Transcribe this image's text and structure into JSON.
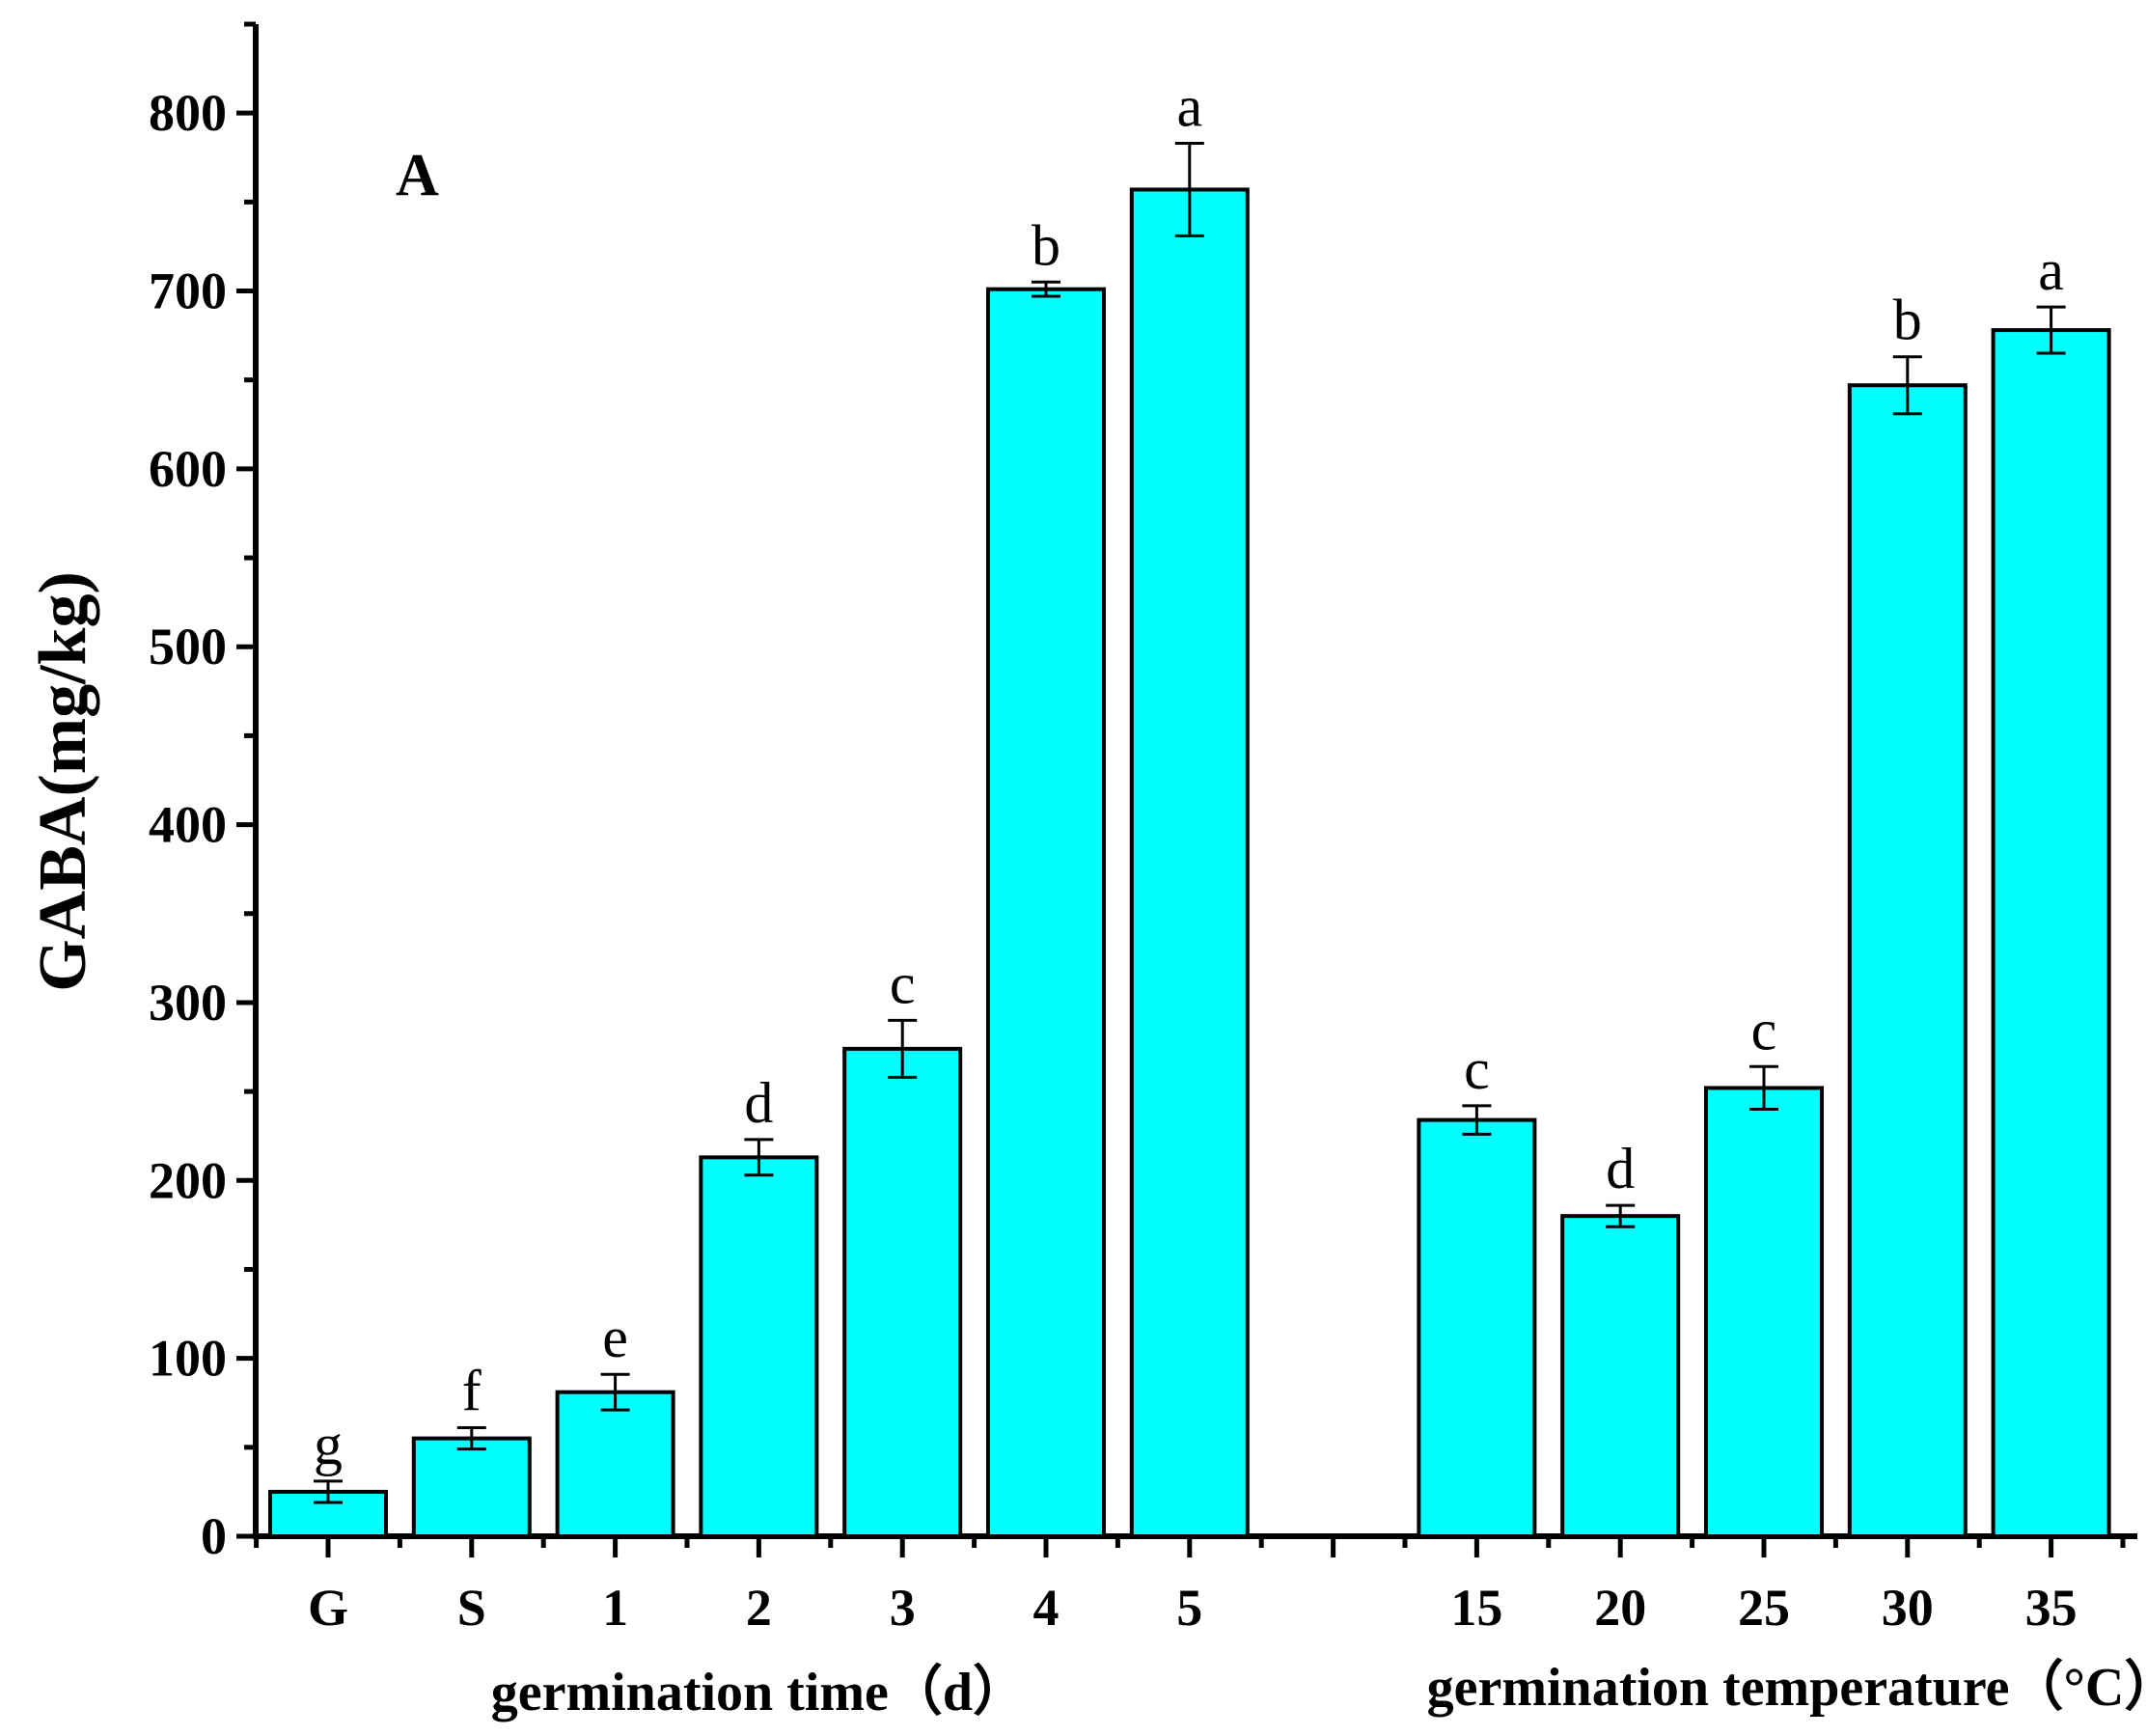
{
  "chart_data": {
    "type": "bar",
    "panel_label": "A",
    "ylabel": "GABA(mg/kg)",
    "ylim": [
      0,
      850
    ],
    "yticks": [
      0,
      100,
      200,
      300,
      400,
      500,
      600,
      700,
      800
    ],
    "grid": false,
    "groups": [
      {
        "xlabel": "germination time（d）",
        "categories": [
          "G",
          "S",
          "1",
          "2",
          "3",
          "4",
          "5"
        ],
        "values": [
          25,
          55,
          81,
          213,
          274,
          701,
          757
        ],
        "errors": [
          6,
          6,
          10,
          10,
          16,
          4,
          26
        ],
        "letters": [
          "g",
          "f",
          "e",
          "d",
          "c",
          "b",
          "a"
        ]
      },
      {
        "xlabel": "germination temperature（°C）",
        "categories": [
          "15",
          "20",
          "25",
          "30",
          "35"
        ],
        "values": [
          234,
          180,
          252,
          647,
          678
        ],
        "errors": [
          8,
          6,
          12,
          16,
          13
        ],
        "letters": [
          "c",
          "d",
          "c",
          "b",
          "a"
        ]
      }
    ],
    "colors": {
      "bar_fill": "#00ffff",
      "bar_stroke": "#000000",
      "axis": "#000000"
    }
  }
}
